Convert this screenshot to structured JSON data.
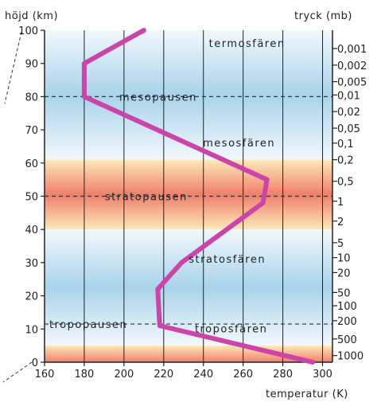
{
  "chart_data": {
    "type": "line",
    "title": "",
    "xlabel": "temperatur (K)",
    "ylabel_left": "höjd (km)",
    "ylabel_right": "tryck (mb)",
    "xlim": [
      160,
      305
    ],
    "ylim": [
      0,
      100
    ],
    "x_ticks": [
      "160",
      "180",
      "200",
      "220",
      "240",
      "260",
      "280",
      "300"
    ],
    "y_ticks": [
      "0",
      "10",
      "20",
      "30",
      "40",
      "50",
      "60",
      "70",
      "80",
      "90",
      "100"
    ],
    "x": [
      295,
      218,
      217,
      229,
      270,
      272,
      180,
      180,
      210
    ],
    "y": [
      0,
      11,
      22,
      30,
      48,
      55,
      80,
      90,
      100
    ],
    "line_color": "#cc44aa",
    "pressure_ticks": [
      {
        "label": "0,001",
        "km": 94.5
      },
      {
        "label": "0,002",
        "km": 89.5
      },
      {
        "label": "0,005",
        "km": 84.5
      },
      {
        "label": "0,01",
        "km": 80.5
      },
      {
        "label": "0,02",
        "km": 75.5
      },
      {
        "label": "0,05",
        "km": 70.5
      },
      {
        "label": "0,1",
        "km": 66.0
      },
      {
        "label": "0,2",
        "km": 61.0
      },
      {
        "label": "0,5",
        "km": 54.5
      },
      {
        "label": "1",
        "km": 48.5
      },
      {
        "label": "2",
        "km": 42.5
      },
      {
        "label": "5",
        "km": 36.0
      },
      {
        "label": "10",
        "km": 31.5
      },
      {
        "label": "20",
        "km": 27.0
      },
      {
        "label": "50",
        "km": 21.0
      },
      {
        "label": "100",
        "km": 17.0
      },
      {
        "label": "200",
        "km": 12.5
      },
      {
        "label": "500",
        "km": 7.0
      },
      {
        "label": "1000",
        "km": 2.0
      }
    ],
    "layers": [
      {
        "label": "termosfären",
        "km": 95,
        "temp": 262
      },
      {
        "label": "mesosfären",
        "km": 65,
        "temp": 258
      },
      {
        "label": "stratosfären",
        "km": 30,
        "temp": 252
      },
      {
        "label": "troposfären",
        "km": 9,
        "temp": 254
      }
    ],
    "pauses": [
      {
        "label": "mesopausen",
        "km": 80
      },
      {
        "label": "stratopausen",
        "km": 50
      },
      {
        "label": "tropopausen",
        "km": 11.5
      }
    ],
    "warm_bands_km": [
      [
        40,
        61
      ],
      [
        0,
        5
      ]
    ],
    "colors": {
      "cold": "#a9d3ea",
      "pale": "#f1f8fc",
      "warm_core": "#ef7f6a",
      "warm_edge": "#fde9b8"
    }
  }
}
